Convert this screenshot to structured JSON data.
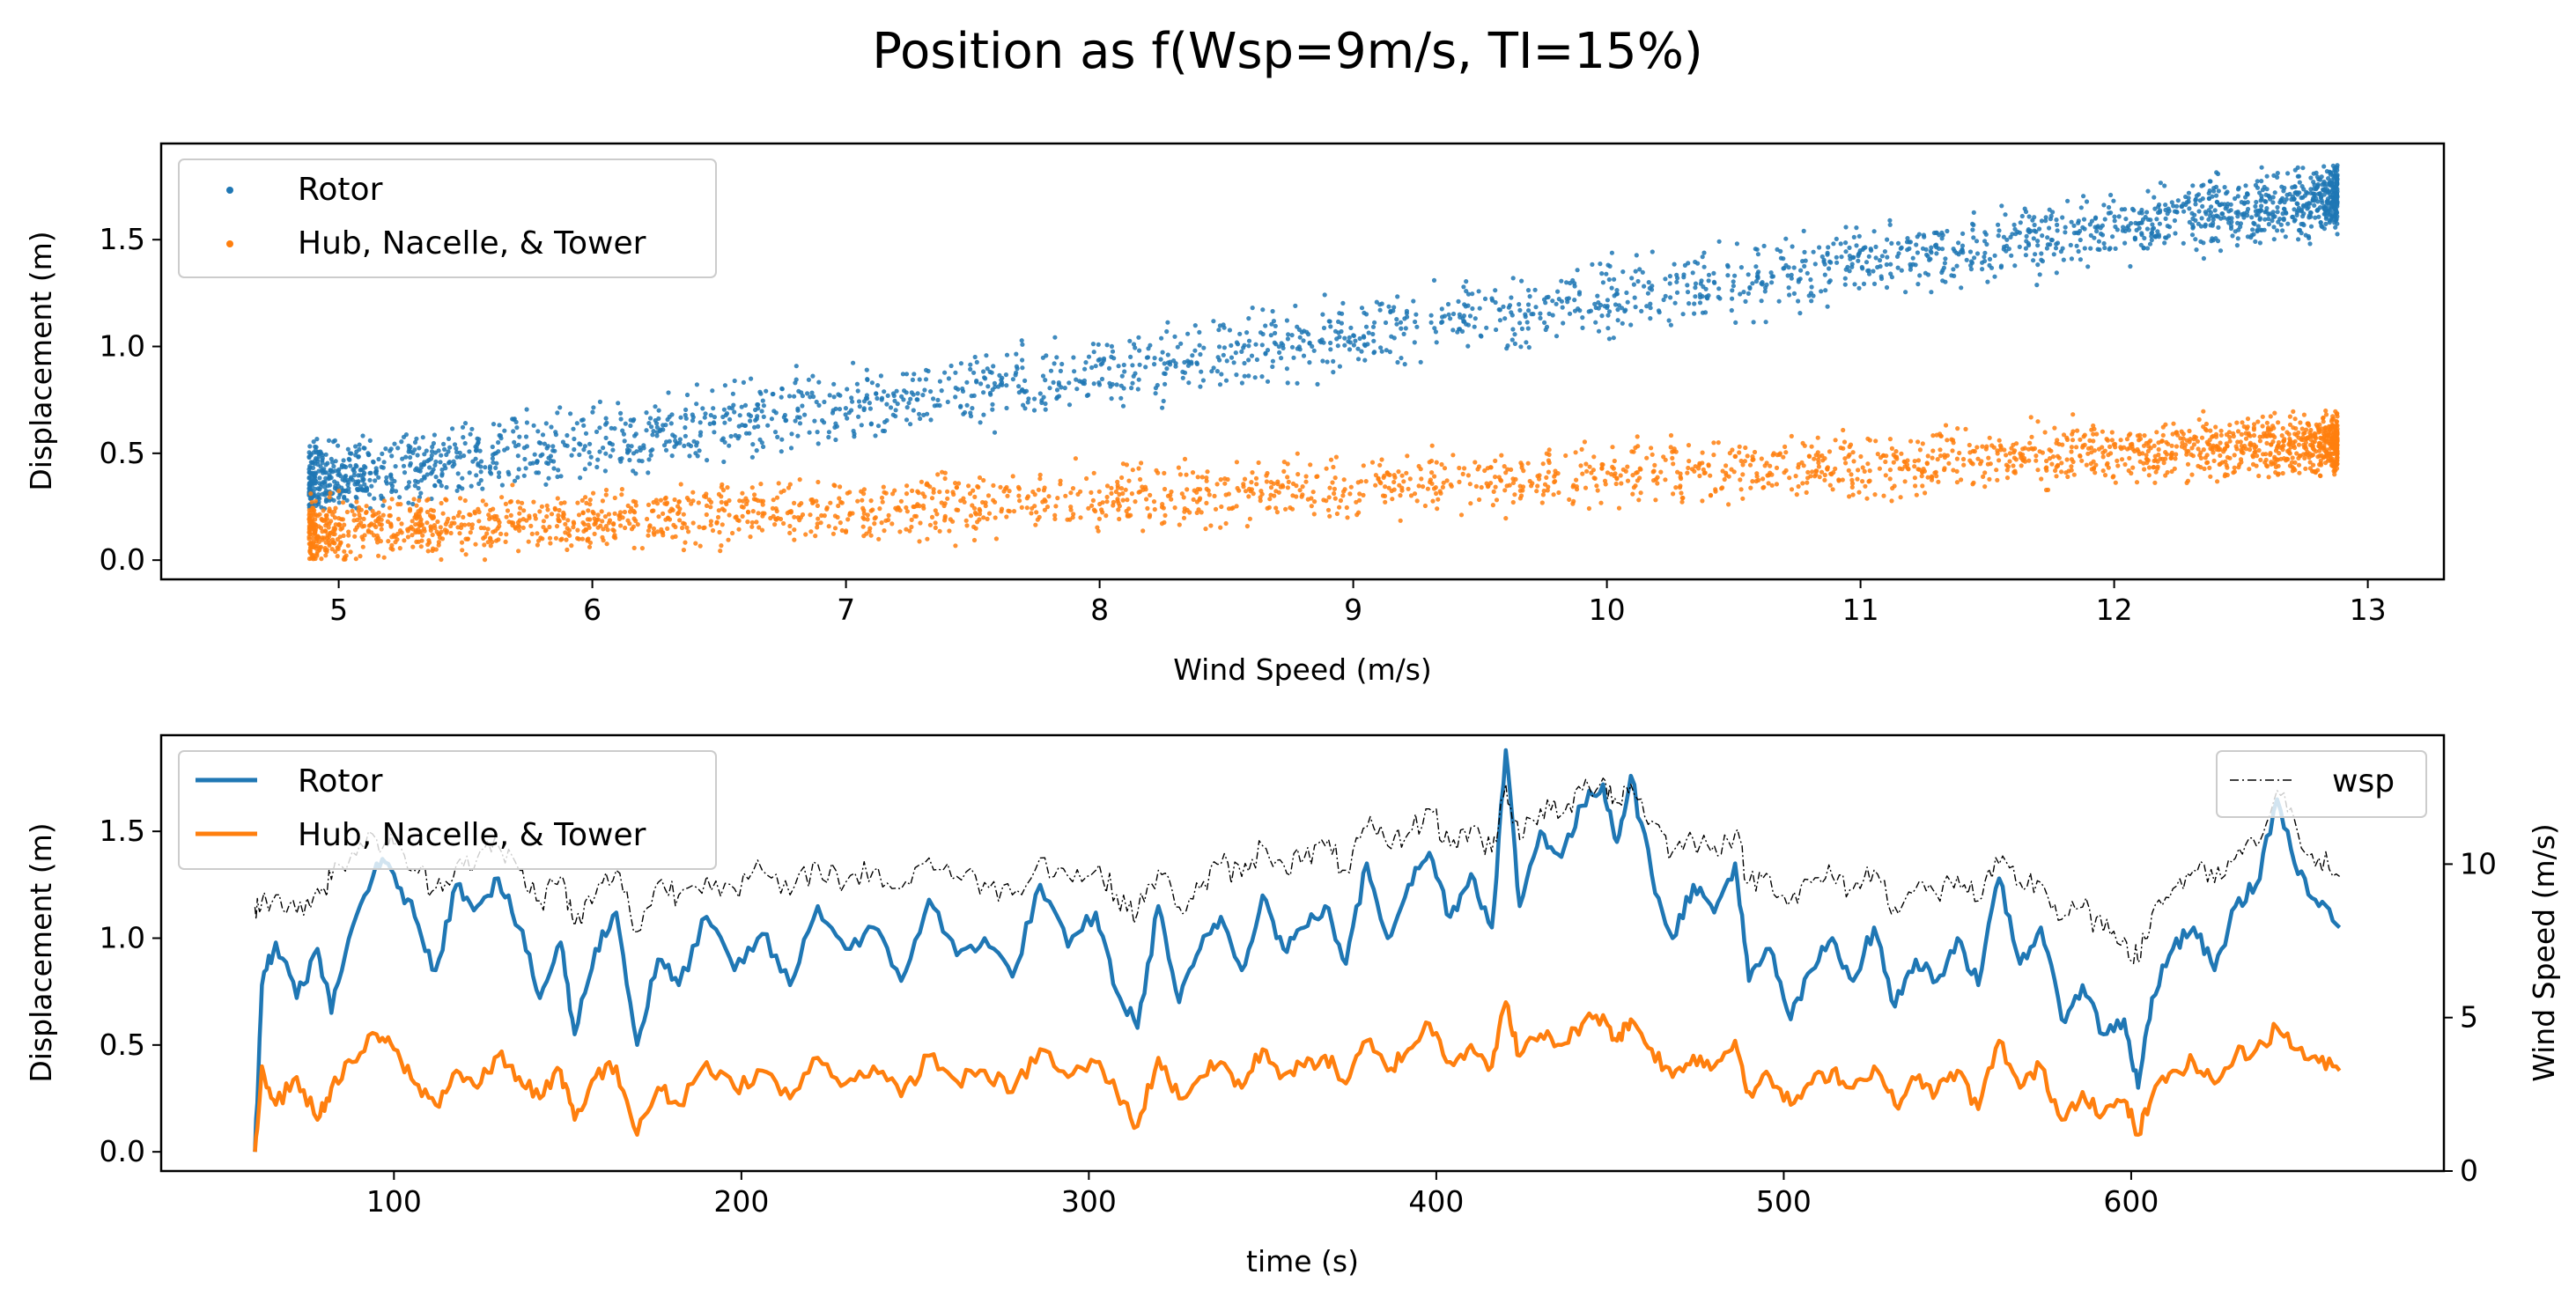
{
  "figure": {
    "title": "Position as f(Wsp=9m/s, TI=15%)"
  },
  "chart_data": [
    {
      "type": "scatter",
      "xlabel": "Wind Speed (m/s)",
      "ylabel": "Displacement (m)",
      "xlim": [
        4.3,
        13.3
      ],
      "ylim": [
        -0.09,
        1.95
      ],
      "xticks": [
        5,
        6,
        7,
        8,
        9,
        10,
        11,
        12,
        13
      ],
      "yticks": [
        0.0,
        0.5,
        1.0,
        1.5
      ],
      "ytick_labels": [
        "0.0",
        "0.5",
        "1.0",
        "1.5"
      ],
      "legend_position": "upper-left",
      "series": [
        {
          "name": "Rotor",
          "color": "#1f77b4",
          "trend": [
            [
              4.72,
              0.34
            ],
            [
              12.88,
              1.7
            ]
          ],
          "spread": 0.24,
          "max_point": 1.85,
          "min_point": 0.24
        },
        {
          "name": "Hub, Nacelle, & Tower",
          "color": "#ff7f0e",
          "trend": [
            [
              4.72,
              0.12
            ],
            [
              12.88,
              0.55
            ]
          ],
          "spread": 0.21,
          "max_point": 0.7,
          "min_point": 0.0
        }
      ]
    },
    {
      "type": "line",
      "xlabel": "time (s)",
      "ylabel": "Displacement (m)",
      "y2label": "Wind Speed (m/s)",
      "xlim": [
        33,
        690
      ],
      "ylim": [
        -0.09,
        1.95
      ],
      "y2lim": [
        0,
        14.2
      ],
      "xticks": [
        100,
        200,
        300,
        400,
        500,
        600
      ],
      "yticks": [
        0.0,
        0.5,
        1.0,
        1.5
      ],
      "ytick_labels": [
        "0.0",
        "0.5",
        "1.0",
        "1.5"
      ],
      "y2ticks": [
        0,
        5,
        10
      ],
      "legend_position": "upper-left",
      "legend2_position": "upper-right",
      "series": [
        {
          "name": "Rotor",
          "color": "#1f77b4",
          "axis": "left",
          "x": [
            60,
            62,
            66,
            72,
            78,
            82,
            88,
            95,
            100,
            106,
            112,
            118,
            124,
            130,
            136,
            142,
            148,
            152,
            158,
            164,
            170,
            176,
            182,
            190,
            198,
            206,
            214,
            222,
            230,
            238,
            246,
            254,
            262,
            270,
            278,
            286,
            294,
            302,
            308,
            314,
            320,
            326,
            332,
            338,
            344,
            350,
            356,
            362,
            368,
            374,
            380,
            386,
            392,
            398,
            404,
            410,
            416,
            420,
            424,
            430,
            436,
            442,
            448,
            452,
            456,
            462,
            468,
            474,
            480,
            486,
            490,
            496,
            502,
            508,
            514,
            520,
            526,
            532,
            538,
            544,
            550,
            556,
            562,
            568,
            574,
            580,
            586,
            592,
            598,
            602,
            606,
            612,
            618,
            624,
            630,
            636,
            642,
            648,
            654,
            660
          ],
          "y": [
            0.0,
            0.78,
            0.98,
            0.72,
            0.95,
            0.65,
            1.05,
            1.35,
            1.3,
            1.1,
            0.85,
            1.25,
            1.15,
            1.28,
            1.05,
            0.72,
            0.98,
            0.55,
            0.95,
            1.12,
            0.5,
            0.9,
            0.78,
            1.1,
            0.85,
            1.02,
            0.78,
            1.15,
            0.95,
            1.05,
            0.8,
            1.18,
            0.92,
            1.0,
            0.82,
            1.25,
            0.96,
            1.12,
            0.75,
            0.58,
            1.15,
            0.7,
            0.95,
            1.1,
            0.85,
            1.2,
            0.95,
            1.05,
            1.15,
            0.88,
            1.35,
            1.0,
            1.25,
            1.4,
            1.1,
            1.3,
            1.05,
            1.88,
            1.15,
            1.5,
            1.38,
            1.62,
            1.72,
            1.45,
            1.76,
            1.3,
            1.0,
            1.25,
            1.12,
            1.35,
            0.8,
            0.95,
            0.62,
            0.85,
            1.0,
            0.8,
            1.05,
            0.68,
            0.9,
            0.8,
            1.0,
            0.78,
            1.28,
            0.88,
            1.05,
            0.62,
            0.78,
            0.55,
            0.62,
            0.3,
            0.72,
            0.95,
            1.05,
            0.85,
            1.15,
            1.25,
            1.65,
            1.3,
            1.15,
            1.05
          ]
        },
        {
          "name": "Hub, Nacelle, & Tower",
          "color": "#ff7f0e",
          "axis": "left",
          "x": [
            60,
            62,
            66,
            72,
            78,
            82,
            88,
            95,
            100,
            106,
            112,
            118,
            124,
            130,
            136,
            142,
            148,
            152,
            158,
            164,
            170,
            176,
            182,
            190,
            198,
            206,
            214,
            222,
            230,
            238,
            246,
            254,
            262,
            270,
            278,
            286,
            294,
            302,
            308,
            314,
            320,
            326,
            332,
            338,
            344,
            350,
            356,
            362,
            368,
            374,
            380,
            386,
            392,
            398,
            404,
            410,
            416,
            420,
            424,
            430,
            436,
            442,
            448,
            452,
            456,
            462,
            468,
            474,
            480,
            486,
            490,
            496,
            502,
            508,
            514,
            520,
            526,
            532,
            538,
            544,
            550,
            556,
            562,
            568,
            574,
            580,
            586,
            592,
            598,
            602,
            606,
            612,
            618,
            624,
            630,
            636,
            642,
            648,
            654,
            660
          ],
          "y": [
            0.0,
            0.4,
            0.22,
            0.35,
            0.15,
            0.3,
            0.42,
            0.55,
            0.48,
            0.32,
            0.22,
            0.38,
            0.3,
            0.45,
            0.35,
            0.25,
            0.38,
            0.15,
            0.35,
            0.4,
            0.08,
            0.3,
            0.22,
            0.42,
            0.3,
            0.38,
            0.25,
            0.44,
            0.32,
            0.4,
            0.26,
            0.45,
            0.33,
            0.38,
            0.28,
            0.48,
            0.35,
            0.42,
            0.28,
            0.12,
            0.44,
            0.25,
            0.35,
            0.42,
            0.3,
            0.48,
            0.36,
            0.4,
            0.45,
            0.32,
            0.52,
            0.38,
            0.48,
            0.6,
            0.42,
            0.5,
            0.4,
            0.7,
            0.45,
            0.55,
            0.5,
            0.6,
            0.64,
            0.52,
            0.62,
            0.48,
            0.35,
            0.45,
            0.4,
            0.52,
            0.28,
            0.35,
            0.22,
            0.32,
            0.38,
            0.3,
            0.4,
            0.22,
            0.34,
            0.28,
            0.38,
            0.2,
            0.52,
            0.3,
            0.4,
            0.15,
            0.28,
            0.18,
            0.24,
            0.08,
            0.26,
            0.38,
            0.42,
            0.32,
            0.45,
            0.48,
            0.58,
            0.48,
            0.42,
            0.38
          ]
        },
        {
          "name": "wsp",
          "color": "#000000",
          "axis": "right",
          "linestyle": "dash-dot",
          "x": [
            60,
            62,
            66,
            72,
            78,
            82,
            88,
            95,
            100,
            106,
            112,
            118,
            124,
            130,
            136,
            142,
            148,
            152,
            158,
            164,
            170,
            176,
            182,
            190,
            198,
            206,
            214,
            222,
            230,
            238,
            246,
            254,
            262,
            270,
            278,
            286,
            294,
            302,
            308,
            314,
            320,
            326,
            332,
            338,
            344,
            350,
            356,
            362,
            368,
            374,
            380,
            386,
            392,
            398,
            404,
            410,
            416,
            420,
            424,
            430,
            436,
            442,
            448,
            452,
            456,
            462,
            468,
            474,
            480,
            486,
            490,
            496,
            502,
            508,
            514,
            520,
            526,
            532,
            538,
            544,
            550,
            556,
            562,
            568,
            574,
            580,
            586,
            592,
            598,
            602,
            606,
            612,
            618,
            624,
            630,
            636,
            642,
            648,
            654,
            660
          ],
          "y": [
            8.6,
            8.8,
            9.0,
            8.4,
            9.2,
            9.5,
            10.4,
            10.8,
            10.6,
            9.8,
            9.2,
            10.0,
            10.2,
            10.6,
            9.8,
            8.8,
            9.6,
            8.0,
            9.0,
            9.8,
            7.8,
            9.4,
            9.0,
            9.6,
            9.2,
            9.8,
            9.0,
            10.0,
            9.4,
            9.8,
            9.2,
            10.2,
            9.6,
            9.4,
            9.0,
            10.2,
            9.6,
            9.8,
            9.0,
            8.4,
            9.8,
            8.6,
            9.2,
            10.0,
            9.6,
            10.6,
            10.0,
            10.2,
            10.6,
            9.8,
            11.2,
            10.6,
            11.0,
            11.8,
            10.6,
            11.2,
            10.4,
            12.6,
            10.8,
            11.8,
            11.6,
            12.4,
            12.8,
            12.0,
            12.6,
            11.4,
            10.4,
            10.8,
            10.6,
            11.0,
            9.4,
            9.6,
            8.8,
            9.4,
            9.6,
            9.2,
            9.8,
            8.6,
            9.2,
            9.0,
            9.6,
            8.8,
            10.0,
            9.4,
            9.4,
            8.2,
            8.6,
            7.8,
            7.6,
            6.8,
            8.4,
            9.2,
            9.8,
            9.4,
            10.2,
            10.6,
            12.4,
            11.0,
            10.2,
            9.6
          ]
        }
      ]
    }
  ]
}
